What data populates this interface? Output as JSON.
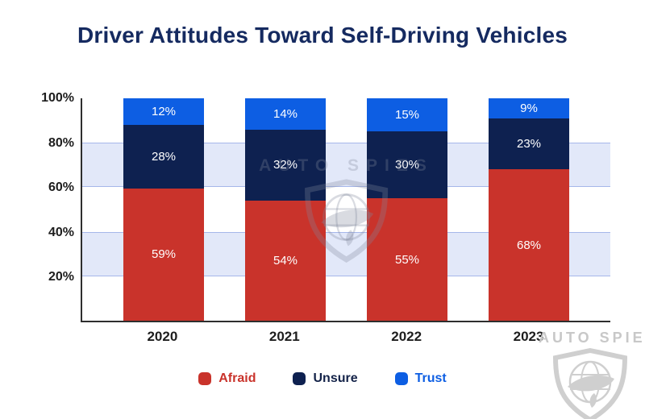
{
  "title": "Driver Attitudes Toward Self-Driving Vehicles",
  "watermark": {
    "text": "AUTO SPIES"
  },
  "colors": {
    "afraid": "#c9332b",
    "unsure": "#0e2150",
    "trust": "#0d5ee3",
    "title_text": "#152a60",
    "band_fill": "#e2e8f9",
    "band_border": "#a6b7ea",
    "axis_line": "#2e2e2e",
    "tick_text": "#1d1d1d",
    "segment_label_text": "#ffffff",
    "watermark_gray": "#c8c8c8"
  },
  "chart_data": {
    "type": "bar",
    "stacked": true,
    "title": "Driver Attitudes Toward Self-Driving Vehicles",
    "categories": [
      "2020",
      "2021",
      "2022",
      "2023"
    ],
    "series": [
      {
        "name": "Afraid",
        "color": "#c9332b",
        "label_color": "#c9332b",
        "values": [
          59,
          54,
          55,
          68
        ]
      },
      {
        "name": "Unsure",
        "color": "#0e2150",
        "label_color": "#132248",
        "values": [
          28,
          32,
          30,
          23
        ]
      },
      {
        "name": "Trust",
        "color": "#0d5ee3",
        "label_color": "#0d5ee3",
        "values": [
          12,
          14,
          15,
          9
        ]
      }
    ],
    "value_suffix": "%",
    "xlabel": "",
    "ylabel": "",
    "ylim": [
      0,
      100
    ],
    "yticks": [
      20,
      40,
      60,
      80,
      100
    ],
    "ytick_suffix": "%",
    "grid_bands": [
      [
        20,
        40
      ],
      [
        60,
        80
      ]
    ],
    "legend_position": "bottom",
    "legend_order": [
      "Afraid",
      "Unsure",
      "Trust"
    ]
  }
}
